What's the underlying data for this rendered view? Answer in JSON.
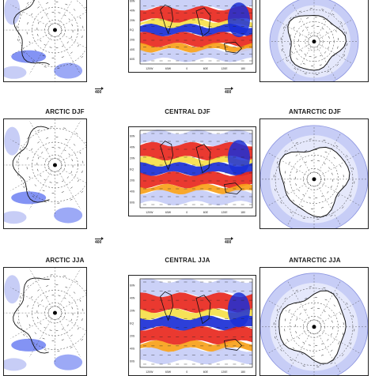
{
  "rows": [
    {
      "panels": [
        {
          "title": "",
          "kind": "arctic"
        },
        {
          "title": "",
          "kind": "central"
        },
        {
          "title": "",
          "kind": "antarctic"
        }
      ],
      "refvec_left": "400",
      "refvec_right": "400"
    },
    {
      "panels": [
        {
          "title": "ARCTIC DJF",
          "kind": "arctic"
        },
        {
          "title": "CENTRAL DJF",
          "kind": "central"
        },
        {
          "title": "ANTARCTIC DJF",
          "kind": "antarctic"
        }
      ],
      "refvec_left": "400",
      "refvec_right": "400"
    },
    {
      "panels": [
        {
          "title": "ARCTIC JJA",
          "kind": "arctic"
        },
        {
          "title": "CENTRAL JJA",
          "kind": "central"
        },
        {
          "title": "ANTARCTIC JJA",
          "kind": "antarctic"
        }
      ]
    }
  ],
  "central_lat_labels": [
    "60N",
    "40N",
    "20N",
    "EQ",
    "20S",
    "40S",
    "60S"
  ],
  "central_lon_labels": [
    "120W",
    "60W",
    "0",
    "60E",
    "120E",
    "180"
  ],
  "colors": {
    "red": "#e8281e",
    "orange": "#f7a11a",
    "yellow": "#f6e04a",
    "blue_dark": "#1b2fd6",
    "blue_mid": "#5a6ff0",
    "blue_light": "#c7cdf6",
    "blue_pale": "#e5e8fb"
  }
}
